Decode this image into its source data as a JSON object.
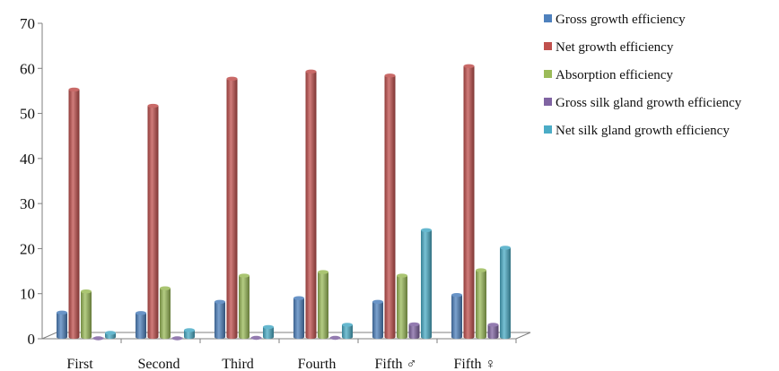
{
  "chart_data": {
    "type": "bar",
    "title": "",
    "xlabel": "",
    "ylabel": "",
    "ylim": [
      0,
      70
    ],
    "yticks": [
      0,
      10,
      20,
      30,
      40,
      50,
      60,
      70
    ],
    "grid": false,
    "legend_position": "right",
    "style": "3d-cylinder",
    "categories": [
      "First",
      "Second",
      "Third",
      "Fourth",
      "Fifth ♂",
      "Fifth ♀"
    ],
    "series": [
      {
        "name": "Gross growth efficiency",
        "color": "#4f81bd",
        "values": [
          5.8,
          5.7,
          8.2,
          9.0,
          8.2,
          9.7
        ]
      },
      {
        "name": "Net growth efficiency",
        "color": "#c0504d",
        "values": [
          55.3,
          51.7,
          57.7,
          59.3,
          58.4,
          60.5
        ]
      },
      {
        "name": "Absorption efficiency",
        "color": "#9bbb59",
        "values": [
          10.5,
          11.2,
          14.0,
          14.8,
          14.0,
          15.2
        ]
      },
      {
        "name": "Gross silk gland growth efficiency",
        "color": "#8064a2",
        "values": [
          0.1,
          0.1,
          0.2,
          0.2,
          3.2,
          3.1
        ]
      },
      {
        "name": "Net silk gland growth efficiency",
        "color": "#4bacc6",
        "values": [
          1.3,
          1.9,
          2.6,
          3.1,
          24.1,
          20.2
        ]
      }
    ]
  }
}
